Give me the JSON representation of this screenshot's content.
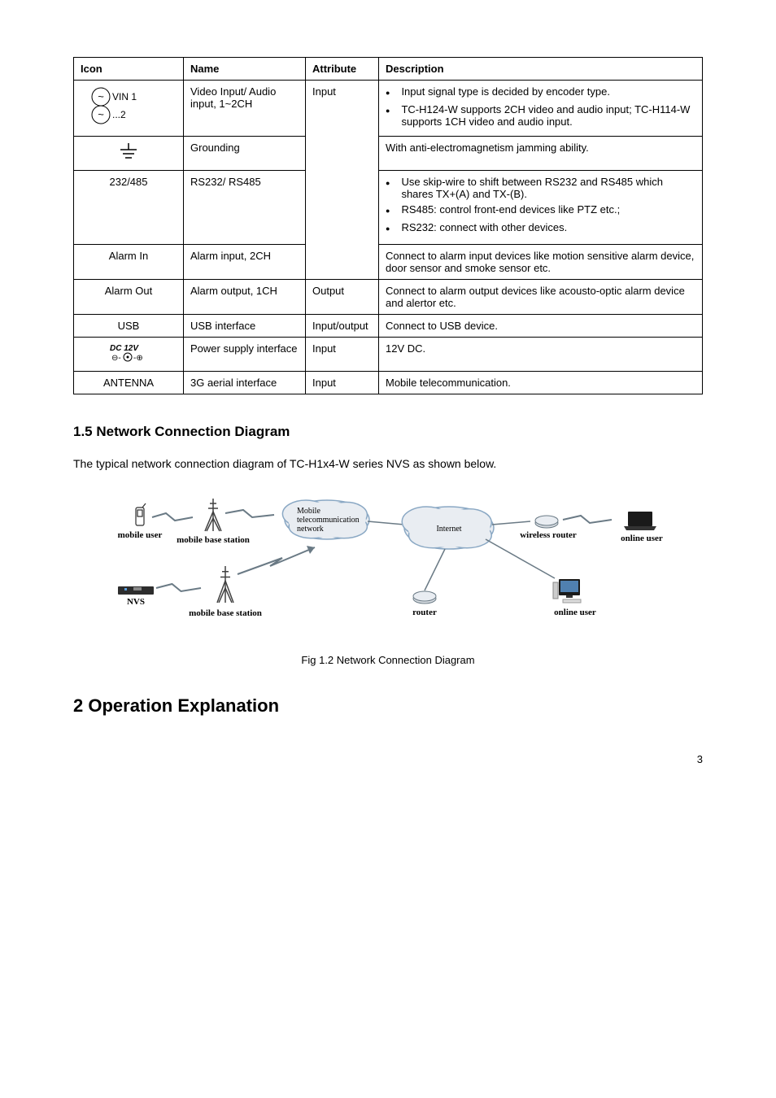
{
  "table": {
    "headers": [
      "Icon",
      "Name",
      "Attribute",
      "Description"
    ],
    "rows": [
      {
        "icon_type": "vin",
        "name": "Video Input/ Audio input, 1~2CH",
        "attr": "Input",
        "desc_type": "list",
        "desc": [
          "Input signal type is decided by encoder type.",
          "TC-H124-W supports 2CH video and audio input; TC-H114-W supports 1CH video and audio input."
        ]
      },
      {
        "icon_type": "gnd",
        "name": "Grounding",
        "attr": "Input",
        "desc_type": "text",
        "desc": "With anti-electromagnetism jamming ability."
      },
      {
        "icon_type": "none",
        "icon_text": "232/485",
        "name": "RS232/ RS485",
        "attr": "Input",
        "desc_type": "list",
        "desc": [
          "Use skip-wire to shift between RS232 and RS485 which shares TX+(A) and TX-(B).",
          "RS485: control front-end devices like PTZ etc.;",
          "RS232: connect with other devices."
        ]
      },
      {
        "icon_type": "none",
        "icon_text": "Alarm In",
        "name": "Alarm input, 2CH",
        "attr": "Input",
        "desc_type": "text",
        "desc": "Connect to alarm input devices like motion sensitive alarm device, door sensor and smoke sensor etc."
      },
      {
        "icon_type": "none",
        "icon_text": "Alarm Out",
        "name": "Alarm output, 1CH",
        "attr": "Output",
        "desc_type": "text",
        "desc": "Connect to alarm output devices like acousto-optic alarm device and alertor etc."
      },
      {
        "icon_type": "none",
        "icon_text": "USB",
        "name": "USB interface",
        "attr": "Input/output",
        "desc_type": "text",
        "desc": "Connect to USB device."
      },
      {
        "icon_type": "dc12v",
        "name": "Power supply interface",
        "attr": "Input",
        "desc_type": "text",
        "desc": "12V DC."
      },
      {
        "icon_type": "none",
        "icon_text": "ANTENNA",
        "name": "3G aerial interface",
        "attr": "Input",
        "desc_type": "text",
        "desc": "Mobile telecommunication."
      }
    ]
  },
  "section": {
    "title": "1.5 Network Connection Diagram",
    "desc": "The typical network connection diagram of TC-H1x4-W series NVS as shown below."
  },
  "figure": {
    "caption": "Fig 1.2 Network Connection Diagram",
    "labels": {
      "mobile_user": "mobile user",
      "mobile_base_1": "mobile base station",
      "mobile_base_2": "mobile base station",
      "mobile_cloud": "Mobile\ntelecommunication\nnetwork",
      "internet": "Internet",
      "wireless_router": "wireless router",
      "online_user_1": "online user",
      "nvs": "NVS",
      "router": "router",
      "online_user_2": "online user"
    },
    "colors": {
      "cloud_stroke": "#8aa8c4",
      "cloud_fill": "#e9edf2",
      "line": "#6a7a85",
      "text": "#000000",
      "antenna": "#404040",
      "device": "#2d2d2d"
    },
    "font_size_label": 11,
    "font_size_cloud": 10
  },
  "chapter": {
    "title": "2 Operation Explanation"
  },
  "page_number": "3"
}
